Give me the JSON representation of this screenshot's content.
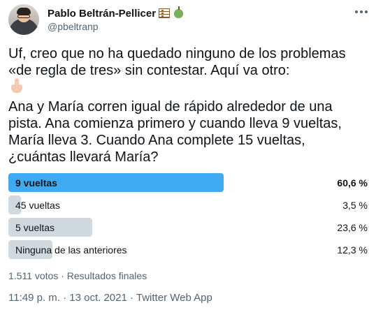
{
  "author": {
    "display_name": "Pablo Beltrán-Pellicer",
    "handle": "@pbeltranp",
    "name_emojis": [
      "abacus-icon",
      "green-apple-icon"
    ]
  },
  "tweet": {
    "intro": "Uf, creo que no ha quedado ninguno de los problemas\n«de regla de tres» sin contestar. Aquí va otro:",
    "emoji": "backhand-index-pointing-down-icon",
    "problem": "Ana y María corren igual de rápido alrededor de una\npista. Ana comienza primero y cuando lleva 9 vueltas,\nMaría lleva 3. Cuando Ana complete 15 vueltas,\n¿cuántas llevará María?"
  },
  "poll": {
    "options": [
      {
        "label": "9 vueltas",
        "percent_text": "60,6 %",
        "percent": 60.6,
        "winner": true
      },
      {
        "label": "45 vueltas",
        "percent_text": "3,5 %",
        "percent": 3.5,
        "winner": false
      },
      {
        "label": "5 vueltas",
        "percent_text": "23,6 %",
        "percent": 23.6,
        "winner": false
      },
      {
        "label": "Ninguna de las anteriores",
        "percent_text": "12,3 %",
        "percent": 12.3,
        "winner": false
      }
    ],
    "summary": "1.511 votos · Resultados finales",
    "colors": {
      "winner_bar": "#1d9bf0",
      "bar": "#cfd9de"
    }
  },
  "meta": {
    "timestamp": "11:49 p. m. · 13 oct. 2021 · ",
    "source": "Twitter Web App"
  }
}
